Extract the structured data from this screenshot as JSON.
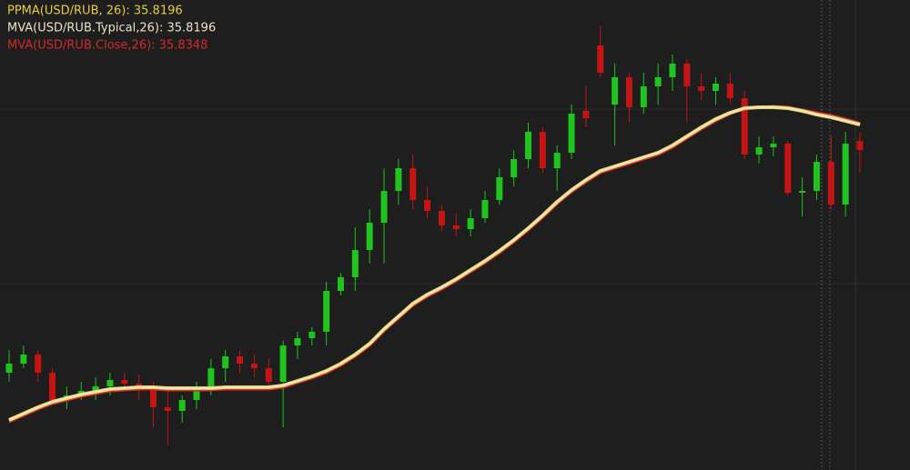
{
  "chart_data": {
    "type": "candlestick",
    "up_color": "#1fc41f",
    "down_color": "#c41414",
    "ylim": [
      32.02,
      37.19
    ],
    "ohlc": {
      "open": [
        33.09,
        33.19,
        33.29,
        33.09,
        32.79,
        32.84,
        32.89,
        32.94,
        33.01,
        32.97,
        32.91,
        32.71,
        32.67,
        32.79,
        32.91,
        33.14,
        33.27,
        33.19,
        33.14,
        32.99,
        33.39,
        33.47,
        33.54,
        33.99,
        34.14,
        34.44,
        34.74,
        35.09,
        35.34,
        34.99,
        34.87,
        34.71,
        34.67,
        34.79,
        34.99,
        35.24,
        35.44,
        35.74,
        35.34,
        35.51,
        35.97,
        36.69,
        36.04,
        36.34,
        36.01,
        36.24,
        36.34,
        36.49,
        36.24,
        36.19,
        36.27,
        36.11,
        35.49,
        35.57,
        35.61,
        35.07,
        35.09,
        35.41,
        34.94,
        35.64
      ],
      "high": [
        33.34,
        33.39,
        33.34,
        33.14,
        32.94,
        32.99,
        33.04,
        33.09,
        33.09,
        33.07,
        32.99,
        32.89,
        32.84,
        32.99,
        33.24,
        33.34,
        33.34,
        33.29,
        33.24,
        33.44,
        33.54,
        33.59,
        34.09,
        34.19,
        34.69,
        34.89,
        35.34,
        35.44,
        35.49,
        35.14,
        34.94,
        34.84,
        34.89,
        35.09,
        35.34,
        35.54,
        35.84,
        35.79,
        35.59,
        36.04,
        36.24,
        36.91,
        36.49,
        36.39,
        36.39,
        36.49,
        36.59,
        36.54,
        36.39,
        36.34,
        36.39,
        36.19,
        35.69,
        35.69,
        35.64,
        35.24,
        35.49,
        35.69,
        35.74,
        35.74
      ],
      "low": [
        32.99,
        33.14,
        32.99,
        32.74,
        32.69,
        32.79,
        32.79,
        32.84,
        32.89,
        32.79,
        32.49,
        32.29,
        32.54,
        32.69,
        32.84,
        32.99,
        33.09,
        33.04,
        32.94,
        32.49,
        33.24,
        33.39,
        33.39,
        33.94,
        33.99,
        34.29,
        34.29,
        34.94,
        34.89,
        34.79,
        34.64,
        34.59,
        34.59,
        34.74,
        34.94,
        35.14,
        35.34,
        35.29,
        35.09,
        35.44,
        35.79,
        36.34,
        35.59,
        35.84,
        35.94,
        36.04,
        36.19,
        35.84,
        36.09,
        36.04,
        36.04,
        35.44,
        35.39,
        35.47,
        35.04,
        34.81,
        34.99,
        34.89,
        34.81,
        35.29
      ],
      "close": [
        33.19,
        33.29,
        33.09,
        32.79,
        32.84,
        32.89,
        32.94,
        33.01,
        32.97,
        32.91,
        32.71,
        32.67,
        32.79,
        32.91,
        33.14,
        33.27,
        33.19,
        33.14,
        32.99,
        33.39,
        33.47,
        33.54,
        33.99,
        34.14,
        34.44,
        34.74,
        35.09,
        35.34,
        34.99,
        34.87,
        34.71,
        34.67,
        34.79,
        34.99,
        35.24,
        35.44,
        35.74,
        35.34,
        35.51,
        35.94,
        35.89,
        36.39,
        36.34,
        36.01,
        36.24,
        36.34,
        36.49,
        36.24,
        36.19,
        36.27,
        36.11,
        35.49,
        35.57,
        35.61,
        35.07,
        35.09,
        35.41,
        34.94,
        35.61,
        35.54
      ]
    },
    "series": [
      {
        "name": "PPMA(USD/RUB, 26): 35.8196",
        "color": "#e6cf3c",
        "values": [
          32.57,
          32.64,
          32.71,
          32.77,
          32.81,
          32.85,
          32.88,
          32.91,
          32.92,
          32.93,
          32.93,
          32.92,
          32.92,
          32.92,
          32.92,
          32.93,
          32.93,
          32.93,
          32.93,
          32.95,
          33.0,
          33.05,
          33.11,
          33.19,
          33.29,
          33.41,
          33.57,
          33.71,
          33.85,
          33.95,
          34.03,
          34.12,
          34.22,
          34.32,
          34.43,
          34.55,
          34.68,
          34.82,
          34.97,
          35.1,
          35.21,
          35.31,
          35.36,
          35.41,
          35.46,
          35.51,
          35.59,
          35.69,
          35.79,
          35.88,
          35.95,
          36.0,
          36.01,
          36.01,
          36.0,
          35.97,
          35.93,
          35.9,
          35.86,
          35.8196
        ]
      },
      {
        "name": "MVA(USD/RUB.Typical,26): 35.8196",
        "color": "#ece3c4",
        "values": [
          32.57,
          32.64,
          32.71,
          32.77,
          32.81,
          32.85,
          32.88,
          32.91,
          32.92,
          32.93,
          32.93,
          32.92,
          32.92,
          32.92,
          32.92,
          32.93,
          32.93,
          32.93,
          32.93,
          32.95,
          33.0,
          33.05,
          33.11,
          33.19,
          33.29,
          33.41,
          33.57,
          33.71,
          33.85,
          33.95,
          34.03,
          34.12,
          34.22,
          34.32,
          34.43,
          34.55,
          34.68,
          34.82,
          34.97,
          35.1,
          35.21,
          35.31,
          35.36,
          35.41,
          35.46,
          35.51,
          35.59,
          35.69,
          35.79,
          35.88,
          35.95,
          36.0,
          36.01,
          36.01,
          36.0,
          35.97,
          35.93,
          35.9,
          35.86,
          35.8196
        ]
      },
      {
        "name": "MVA(USD/RUB.Close,26): 35.8348",
        "color": "#d42a2a",
        "values": [
          32.55,
          32.62,
          32.69,
          32.75,
          32.79,
          32.83,
          32.86,
          32.89,
          32.9,
          32.91,
          32.91,
          32.9,
          32.9,
          32.9,
          32.9,
          32.91,
          32.91,
          32.91,
          32.91,
          32.93,
          32.98,
          33.03,
          33.09,
          33.17,
          33.27,
          33.39,
          33.55,
          33.69,
          33.83,
          33.93,
          34.01,
          34.1,
          34.2,
          34.3,
          34.41,
          34.53,
          34.66,
          34.8,
          34.95,
          35.08,
          35.19,
          35.29,
          35.34,
          35.39,
          35.44,
          35.49,
          35.57,
          35.67,
          35.77,
          35.86,
          35.94,
          35.99,
          36.01,
          36.02,
          36.01,
          35.98,
          35.95,
          35.92,
          35.88,
          35.8348
        ]
      }
    ]
  }
}
